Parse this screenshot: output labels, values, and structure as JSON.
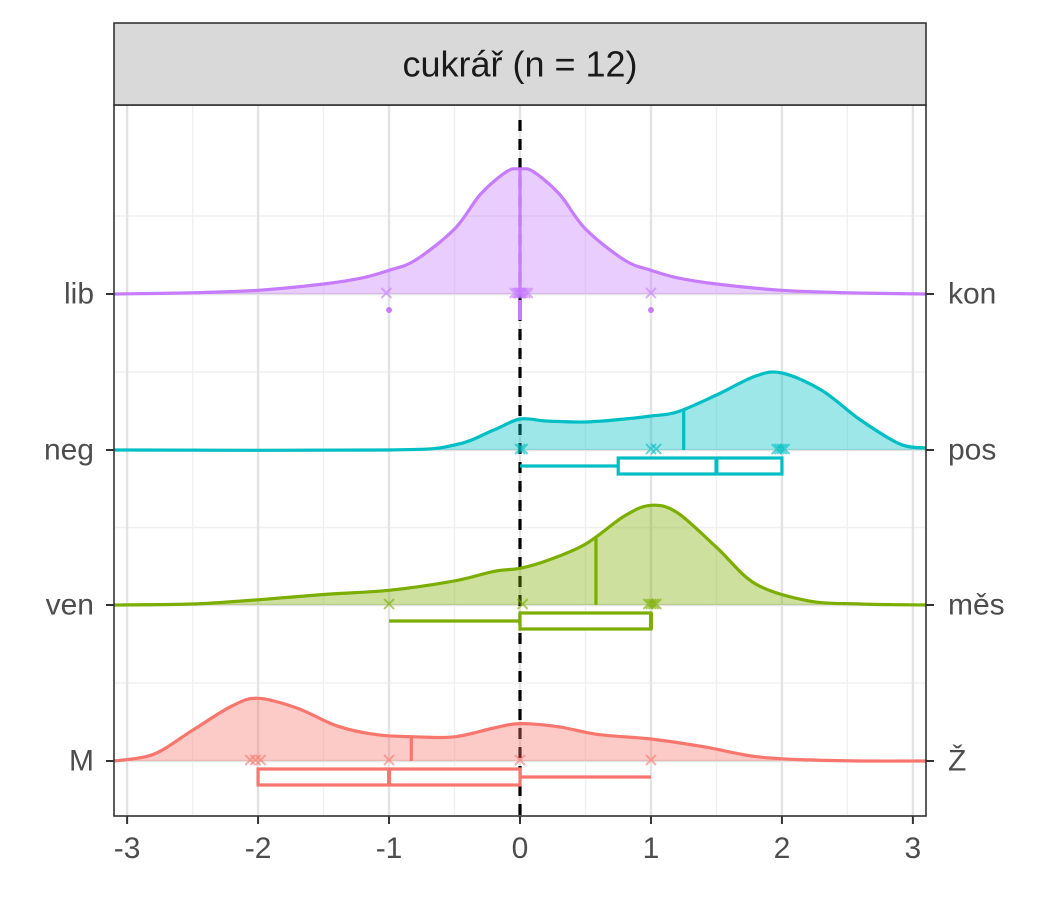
{
  "chart_data": {
    "type": "ridgeline",
    "title": "cukrář (n = 12)",
    "xlim": [
      -3.1,
      3.1
    ],
    "x_ticks": [
      -3,
      -2,
      -1,
      0,
      1,
      2,
      3
    ],
    "x_tick_labels": [
      "-3",
      "-2",
      "-1",
      "0",
      "1",
      "2",
      "3"
    ],
    "reference_line_x": 0,
    "grid": true,
    "series": [
      {
        "left_label": "lib",
        "right_label": "kon",
        "color": "#C77CFF",
        "density": {
          "x": [
            -3.1,
            -2.5,
            -2,
            -1.5,
            -1.2,
            -1,
            -0.8,
            -0.5,
            -0.3,
            -0.1,
            0,
            0.1,
            0.3,
            0.5,
            0.8,
            1,
            1.2,
            1.5,
            2,
            2.5,
            3.1
          ],
          "y": [
            0,
            0.01,
            0.03,
            0.08,
            0.13,
            0.19,
            0.27,
            0.52,
            0.8,
            0.98,
            1.0,
            0.98,
            0.8,
            0.52,
            0.27,
            0.19,
            0.13,
            0.08,
            0.03,
            0.01,
            0
          ]
        },
        "mean": 0,
        "box": {
          "min": 0,
          "q1": 0,
          "median": 0,
          "q3": 0,
          "max": 0
        },
        "outliers": [
          -1,
          1
        ],
        "points": [
          -1.02,
          -0.04,
          -0.02,
          -0.01,
          0,
          0.01,
          0.02,
          0.04,
          0.06,
          1
        ]
      },
      {
        "left_label": "neg",
        "right_label": "pos",
        "color": "#00BFC4",
        "density": {
          "x": [
            -3.1,
            -1,
            -0.5,
            -0.2,
            0,
            0.2,
            0.5,
            0.8,
            1,
            1.2,
            1.5,
            1.8,
            2,
            2.3,
            2.6,
            2.9,
            3.1
          ],
          "y": [
            0,
            0,
            0.05,
            0.2,
            0.31,
            0.29,
            0.28,
            0.31,
            0.34,
            0.38,
            0.55,
            0.74,
            0.77,
            0.6,
            0.3,
            0.06,
            0.02
          ]
        },
        "mean": 1.25,
        "box": {
          "min": 0,
          "q1": 0.75,
          "median": 1.5,
          "q3": 2,
          "max": 2
        },
        "outliers": [],
        "points": [
          0,
          0.02,
          1,
          1.04,
          1.96,
          1.98,
          2,
          2.02
        ]
      },
      {
        "left_label": "ven",
        "right_label": "měs",
        "color": "#7CAE00",
        "density": {
          "x": [
            -3.1,
            -2.5,
            -2,
            -1.5,
            -1,
            -0.5,
            -0.2,
            0,
            0.2,
            0.5,
            0.8,
            1,
            1.2,
            1.5,
            1.8,
            2.2,
            2.6,
            3.1
          ],
          "y": [
            0,
            0.01,
            0.05,
            0.1,
            0.14,
            0.23,
            0.32,
            0.35,
            0.42,
            0.58,
            0.85,
            0.95,
            0.88,
            0.55,
            0.2,
            0.04,
            0.01,
            0
          ]
        },
        "mean": 0.58,
        "box": {
          "min": -1,
          "q1": 0,
          "median": 1,
          "q3": 1,
          "max": 1
        },
        "outliers": [],
        "points": [
          -1,
          0.02,
          0.98,
          1,
          1.02,
          1.04
        ]
      },
      {
        "left_label": "M",
        "right_label": "Ž",
        "color": "#F8766D",
        "density": {
          "x": [
            -3.1,
            -2.8,
            -2.5,
            -2.2,
            -2,
            -1.7,
            -1.4,
            -1.1,
            -0.8,
            -0.5,
            -0.2,
            0,
            0.3,
            0.6,
            1,
            1.4,
            1.8,
            2.2,
            2.6,
            3.1
          ],
          "y": [
            0,
            0.06,
            0.28,
            0.5,
            0.57,
            0.48,
            0.32,
            0.24,
            0.22,
            0.22,
            0.3,
            0.34,
            0.31,
            0.24,
            0.2,
            0.13,
            0.04,
            0.01,
            0,
            0
          ]
        },
        "mean": -0.83,
        "box": {
          "min": -2,
          "q1": -2,
          "median": -1,
          "q3": 0,
          "max": 1
        },
        "outliers": [],
        "points": [
          -2.06,
          -2.02,
          -1.98,
          -1,
          0,
          1
        ]
      }
    ]
  }
}
